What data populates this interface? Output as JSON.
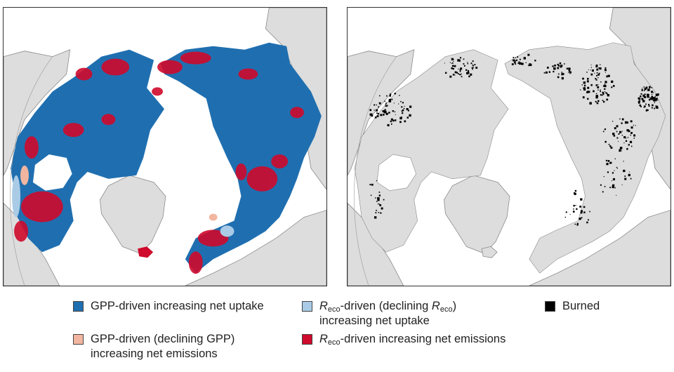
{
  "panels": [
    {
      "name": "flux-driver-map"
    },
    {
      "name": "burned-area-map"
    }
  ],
  "legend": {
    "items": [
      {
        "id": "gpp-uptake",
        "color": "#1f6fb0",
        "line1": "GPP-driven increasing net uptake",
        "line2": ""
      },
      {
        "id": "reco-uptake",
        "color": "#a9cbe6",
        "r": "R",
        "sub": "eco",
        "mid": "-driven (declining ",
        "r2": "R",
        "sub2": "eco",
        "end": ")",
        "line2": "increasing net uptake"
      },
      {
        "id": "burned",
        "color": "#000000",
        "line1": "Burned",
        "line2": ""
      },
      {
        "id": "gpp-emissions",
        "color": "#f2b6a0",
        "line1": "GPP-driven (declining GPP)",
        "line2": "increasing net emissions"
      },
      {
        "id": "reco-emissions",
        "color": "#cf0a2c",
        "r": "R",
        "sub": "eco",
        "rest": "-driven increasing net emissions"
      }
    ]
  },
  "colors": {
    "land": "#dddddd",
    "coast": "#8a8a8a",
    "water": "#ffffff",
    "uptake": "#1f6fb0",
    "emissions": "#cf0a2c",
    "burned": "#000000"
  }
}
